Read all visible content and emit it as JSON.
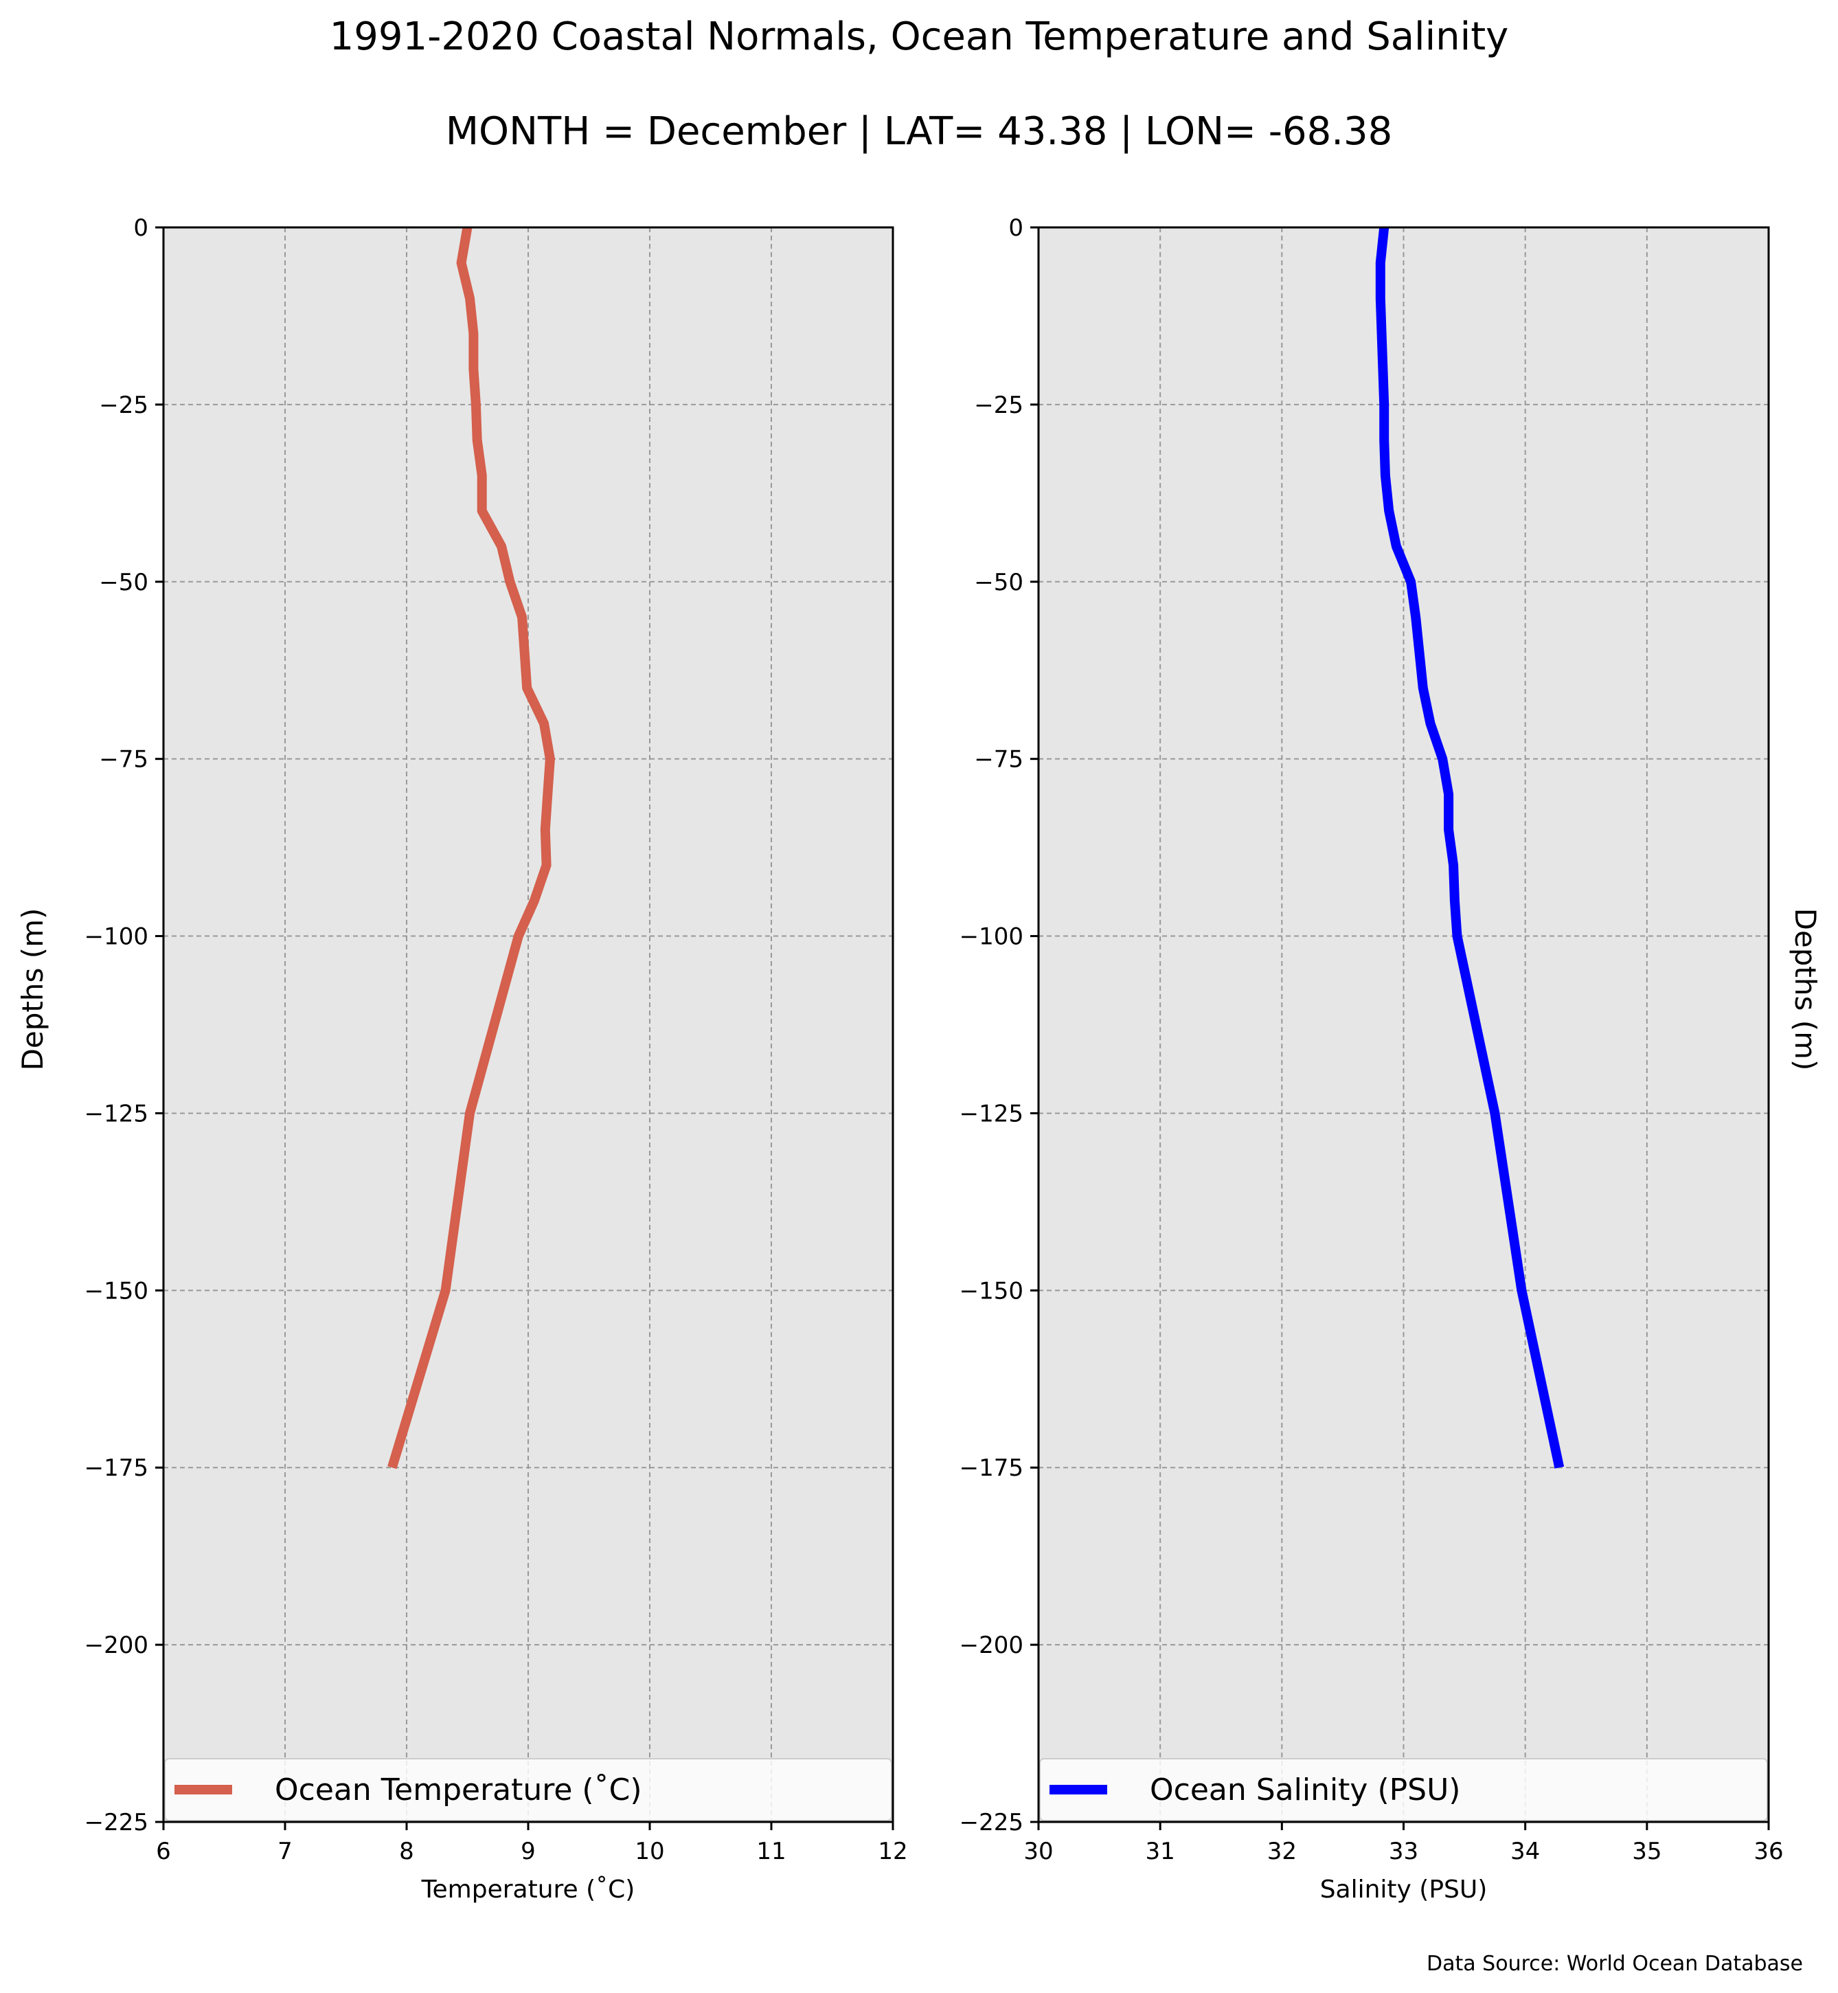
{
  "title": "1991-2020 Coastal Normals, Ocean Temperature and Salinity",
  "subtitle": "MONTH = December | LAT= 43.38 | LON= -68.38",
  "source_note": "Data Source: World Ocean Database",
  "colors": {
    "plot_background": "#e6e6e6",
    "grid": "#999999",
    "temperature_line": "#d4604d",
    "salinity_line": "#0000ff"
  },
  "chart_data": [
    {
      "type": "line",
      "xlabel": "Temperature ($^\\circ$C)",
      "xlabel_display": "Temperature (˚C)",
      "ylabel": "Depths (m)",
      "xlim": [
        6,
        12
      ],
      "ylim": [
        -225,
        0
      ],
      "xticks": [
        "6",
        "7",
        "8",
        "9",
        "10",
        "11",
        "12"
      ],
      "yticks": [
        "0",
        "−25",
        "−50",
        "−75",
        "−100",
        "−125",
        "−150",
        "−175",
        "−200",
        "−225"
      ],
      "grid": true,
      "legend": "lower center",
      "series": [
        {
          "name": "Ocean Temperature (˚C)",
          "color": "#d4604d",
          "x": [
            8.5,
            8.45,
            8.52,
            8.55,
            8.55,
            8.57,
            8.58,
            8.62,
            8.62,
            8.78,
            8.85,
            8.95,
            8.97,
            8.99,
            9.13,
            9.18,
            9.16,
            9.14,
            9.15,
            9.05,
            8.92,
            8.52,
            8.32,
            7.88
          ],
          "y": [
            0,
            -5,
            -10,
            -15,
            -20,
            -25,
            -30,
            -35,
            -40,
            -45,
            -50,
            -55,
            -60,
            -65,
            -70,
            -75,
            -80,
            -85,
            -90,
            -95,
            -100,
            -125,
            -150,
            -175
          ]
        }
      ]
    },
    {
      "type": "line",
      "xlabel": "Salinity (PSU)",
      "ylabel": "Depths (m)",
      "xlim": [
        30,
        36
      ],
      "ylim": [
        -225,
        0
      ],
      "xticks": [
        "30",
        "31",
        "32",
        "33",
        "34",
        "35",
        "36"
      ],
      "yticks": [
        "0",
        "−25",
        "−50",
        "−75",
        "−100",
        "−125",
        "−150",
        "−175",
        "−200",
        "−225"
      ],
      "grid": true,
      "legend": "lower center",
      "series": [
        {
          "name": "Ocean Salinity (PSU)",
          "color": "#0000ff",
          "x": [
            32.84,
            32.81,
            32.81,
            32.82,
            32.83,
            32.84,
            32.84,
            32.85,
            32.88,
            32.94,
            33.06,
            33.1,
            33.13,
            33.16,
            33.22,
            33.32,
            33.37,
            33.37,
            33.41,
            33.42,
            33.44,
            33.75,
            33.97,
            34.28
          ],
          "y": [
            0,
            -5,
            -10,
            -15,
            -20,
            -25,
            -30,
            -35,
            -40,
            -45,
            -50,
            -55,
            -60,
            -65,
            -70,
            -75,
            -80,
            -85,
            -90,
            -95,
            -100,
            -125,
            -150,
            -175
          ]
        }
      ]
    }
  ]
}
